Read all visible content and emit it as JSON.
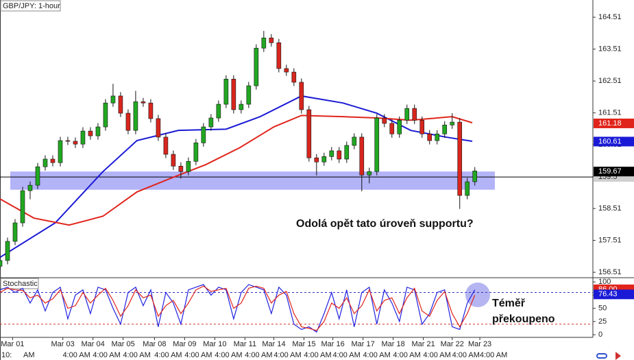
{
  "chart_data": [
    {
      "type": "candlestick",
      "title": "GBP/JPY: 1-hour",
      "x": [
        0,
        6,
        12,
        18,
        24,
        30,
        36,
        42,
        48,
        54,
        60,
        66,
        72,
        78,
        84,
        90,
        96,
        102,
        108,
        114,
        120,
        126,
        132,
        138,
        144,
        150,
        156,
        162,
        168,
        174,
        180,
        186,
        192,
        198,
        204,
        210,
        216,
        222,
        228,
        234,
        240,
        246,
        252,
        258,
        264,
        270,
        276,
        282,
        288,
        294,
        300,
        306,
        312,
        318,
        324,
        330,
        336,
        342,
        348,
        354,
        360,
        366,
        372,
        378
      ],
      "open": [
        156.7,
        156.88,
        157.48,
        158.06,
        159.07,
        159.24,
        159.82,
        160.06,
        159.95,
        160.64,
        160.62,
        160.53,
        160.94,
        160.79,
        161.07,
        161.82,
        162.04,
        161.5,
        160.96,
        161.86,
        161.82,
        161.33,
        160.75,
        160.21,
        159.84,
        159.67,
        159.99,
        160.57,
        161.07,
        161.35,
        161.78,
        162.57,
        161.61,
        161.78,
        162.36,
        163.54,
        163.86,
        163.71,
        162.9,
        162.79,
        162.47,
        161.61,
        160.1,
        159.97,
        160.14,
        160.32,
        160.06,
        160.49,
        160.75,
        159.56,
        159.67,
        161.35,
        161.18,
        160.85,
        161.28,
        161.65,
        161.28,
        160.85,
        160.64,
        160.85,
        161.13,
        161.22,
        158.92,
        159.35
      ],
      "high": [
        157.0,
        157.6,
        158.18,
        159.19,
        159.36,
        159.94,
        160.18,
        160.18,
        160.76,
        160.76,
        160.74,
        161.06,
        161.06,
        161.19,
        161.94,
        162.42,
        162.16,
        161.62,
        162.2,
        161.98,
        161.94,
        161.45,
        160.87,
        160.33,
        159.96,
        160.11,
        160.69,
        161.19,
        161.47,
        161.9,
        162.69,
        162.69,
        161.9,
        162.48,
        163.66,
        164.08,
        163.98,
        163.83,
        163.02,
        162.91,
        162.59,
        161.73,
        160.22,
        160.26,
        160.44,
        160.44,
        160.61,
        160.87,
        160.87,
        159.79,
        161.47,
        161.47,
        161.3,
        161.4,
        161.77,
        161.77,
        161.4,
        160.97,
        160.97,
        161.25,
        161.5,
        161.34,
        159.47,
        159.81
      ],
      "low": [
        156.58,
        156.76,
        157.36,
        157.94,
        158.8,
        159.12,
        159.7,
        159.83,
        159.83,
        160.5,
        160.41,
        160.41,
        160.67,
        160.67,
        160.95,
        161.7,
        161.38,
        160.84,
        160.84,
        161.7,
        161.21,
        160.63,
        160.09,
        159.72,
        159.45,
        159.55,
        159.87,
        160.45,
        160.95,
        161.23,
        161.66,
        161.49,
        161.49,
        161.66,
        162.24,
        163.42,
        163.59,
        162.78,
        162.67,
        162.35,
        161.49,
        159.98,
        159.55,
        159.85,
        160.02,
        159.94,
        159.94,
        160.37,
        159.05,
        159.3,
        159.55,
        161.06,
        160.73,
        160.73,
        161.16,
        161.16,
        160.73,
        160.52,
        160.52,
        160.73,
        161.01,
        158.5,
        158.8,
        159.23
      ],
      "close": [
        156.88,
        157.48,
        158.06,
        159.07,
        159.24,
        159.82,
        160.06,
        159.95,
        160.64,
        160.62,
        160.53,
        160.94,
        160.79,
        161.07,
        161.82,
        162.04,
        161.5,
        160.96,
        161.86,
        161.82,
        161.33,
        160.75,
        160.21,
        159.84,
        159.67,
        159.99,
        160.57,
        161.07,
        161.35,
        161.78,
        162.57,
        161.61,
        161.78,
        162.36,
        163.54,
        163.86,
        163.71,
        162.9,
        162.79,
        162.47,
        161.61,
        160.1,
        159.97,
        160.14,
        160.32,
        160.06,
        160.49,
        160.75,
        159.56,
        159.67,
        161.35,
        161.18,
        160.85,
        161.28,
        161.65,
        161.28,
        160.85,
        160.64,
        160.85,
        161.13,
        161.22,
        158.92,
        159.35,
        159.69
      ],
      "up_color": "#22a722",
      "down_color": "#d8261e",
      "series": [
        {
          "color": "#1a1ad6",
          "x": [
            0,
            44,
            82,
            109,
            142,
            180,
            207,
            240,
            273,
            300,
            327,
            355,
            376
          ],
          "values": [
            156.98,
            158.06,
            159.67,
            160.64,
            160.96,
            161.0,
            161.39,
            162.04,
            161.82,
            161.5,
            160.96,
            160.75,
            160.62
          ]
        },
        {
          "color": "#e0241b",
          "x": [
            0,
            27,
            55,
            82,
            109,
            136,
            164,
            191,
            218,
            240,
            273,
            300,
            327,
            360,
            376
          ],
          "values": [
            158.81,
            158.21,
            157.99,
            158.27,
            159.03,
            159.46,
            159.89,
            160.42,
            161.07,
            161.43,
            161.39,
            161.35,
            161.28,
            161.39,
            161.2
          ]
        }
      ],
      "xlim": [
        0,
        472
      ],
      "ylim": [
        156.34,
        165.05
      ],
      "yticks": [
        156.51,
        157.51,
        158.51,
        159.51,
        160.51,
        161.51,
        162.51,
        163.51,
        164.51
      ],
      "support_zone": [
        159.1,
        159.67
      ],
      "zone_color": "#9a9af5",
      "price_line": 159.5,
      "price_tags": [
        {
          "value": 159.5,
          "color": "#d0d0d0"
        },
        {
          "value": 161.18,
          "color": "#e0241b"
        },
        {
          "value": 160.61,
          "color": "#1a1ad6"
        },
        {
          "value": 159.67,
          "color": "#000000"
        }
      ],
      "annotation": "Odolá opět tato úroveň supportu?"
    },
    {
      "type": "line",
      "title": "Stochastic",
      "xlim": [
        0,
        472
      ],
      "ylim": [
        -5,
        108
      ],
      "yticks": [
        0,
        25,
        50,
        75,
        100
      ],
      "levels": [
        80,
        20
      ],
      "series": [
        {
          "color": "#2020e0",
          "x": [
            0,
            6,
            12,
            18,
            24,
            30,
            36,
            42,
            48,
            54,
            60,
            66,
            72,
            78,
            84,
            90,
            96,
            102,
            108,
            114,
            120,
            126,
            132,
            138,
            144,
            150,
            156,
            162,
            168,
            174,
            180,
            186,
            192,
            198,
            204,
            210,
            216,
            222,
            228,
            234,
            240,
            246,
            252,
            258,
            264,
            270,
            276,
            282,
            288,
            294,
            300,
            306,
            312,
            318,
            324,
            330,
            336,
            342,
            348,
            354,
            360,
            366,
            372,
            378
          ],
          "values": [
            85,
            90,
            80,
            88,
            60,
            85,
            45,
            80,
            90,
            30,
            75,
            85,
            40,
            90,
            85,
            50,
            20,
            80,
            90,
            55,
            85,
            15,
            80,
            60,
            20,
            85,
            90,
            95,
            75,
            90,
            85,
            30,
            80,
            95,
            90,
            85,
            40,
            90,
            75,
            20,
            10,
            15,
            5,
            40,
            80,
            30,
            85,
            15,
            80,
            90,
            20,
            85,
            60,
            25,
            90,
            85,
            20,
            40,
            80,
            85,
            15,
            10,
            60,
            85
          ]
        },
        {
          "color": "#e0241b",
          "x": [
            0,
            6,
            12,
            18,
            24,
            30,
            36,
            42,
            48,
            54,
            60,
            66,
            72,
            78,
            84,
            90,
            96,
            102,
            108,
            114,
            120,
            126,
            132,
            138,
            144,
            150,
            156,
            162,
            168,
            174,
            180,
            186,
            192,
            198,
            204,
            210,
            216,
            222,
            228,
            234,
            240,
            246,
            252,
            258,
            264,
            270,
            276,
            282,
            288,
            294,
            300,
            306,
            312,
            318,
            324,
            330,
            336,
            342,
            348,
            354,
            360,
            366,
            372,
            378
          ],
          "values": [
            80,
            88,
            85,
            84,
            70,
            75,
            60,
            68,
            85,
            50,
            55,
            80,
            60,
            75,
            88,
            65,
            35,
            55,
            85,
            70,
            75,
            35,
            55,
            65,
            40,
            60,
            85,
            92,
            82,
            85,
            88,
            50,
            60,
            88,
            92,
            88,
            60,
            75,
            82,
            40,
            15,
            12,
            8,
            25,
            60,
            50,
            70,
            40,
            55,
            85,
            45,
            65,
            70,
            40,
            70,
            88,
            45,
            35,
            65,
            82,
            40,
            15,
            40,
            75
          ]
        }
      ],
      "value_tags": [
        {
          "value": {
            "value": 86,
            "label": "86.00"
          },
          "color": "#e0241b"
        },
        {
          "value": 76.43,
          "color": "#1a1ad6"
        }
      ],
      "xticks": [
        {
          "value": 10,
          "label": "Mar 01"
        },
        {
          "value": 50,
          "label": "Mar 03"
        },
        {
          "value": 74,
          "label": "Mar 04"
        },
        {
          "value": 98,
          "label": "Mar 05"
        },
        {
          "value": 123,
          "label": "Mar 08"
        },
        {
          "value": 147,
          "label": "Mar 09"
        },
        {
          "value": 171,
          "label": "Mar 10"
        },
        {
          "value": 195,
          "label": "Mar 11"
        },
        {
          "value": 218,
          "label": "Mar 14"
        },
        {
          "value": 242,
          "label": "Mar 15"
        },
        {
          "value": 265,
          "label": "Mar 16"
        },
        {
          "value": 289,
          "label": "Mar 17"
        },
        {
          "value": 313,
          "label": "Mar 18"
        },
        {
          "value": 337,
          "label": "Mar 21"
        },
        {
          "value": 360,
          "label": "Mar 22"
        },
        {
          "value": 382,
          "label": "Mar 23"
        }
      ],
      "time_labels": [
        "10:",
        "AM",
        "4:00 AM",
        "4:00 AM",
        "4:00 AM",
        "4:00 AM",
        "4:00 AM",
        "4:00 AM",
        "4:00 AM",
        "4:00 AM",
        "4:00 AM",
        "4:00 AM",
        "4:00 AM",
        "4:00 AM",
        "4:00 AM",
        "4:00 AM",
        "4:00 AM"
      ],
      "annotation": [
        "Téměř",
        "překoupeno"
      ]
    }
  ]
}
